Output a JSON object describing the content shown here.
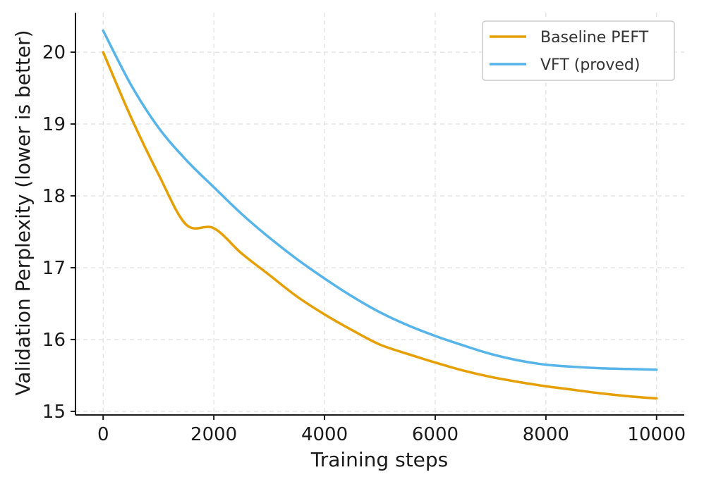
{
  "chart_data": {
    "type": "line",
    "title": "",
    "xlabel": "Training steps",
    "ylabel": "Validation Perplexity (lower is better)",
    "xlim": [
      -500,
      10500
    ],
    "ylim": [
      14.95,
      20.55
    ],
    "xticks": [
      0,
      2000,
      4000,
      6000,
      8000,
      10000
    ],
    "yticks": [
      15,
      16,
      17,
      18,
      19,
      20
    ],
    "grid": true,
    "legend_position": "top-right",
    "series": [
      {
        "name": "Baseline PEFT",
        "color": "#E69F00",
        "x": [
          0,
          500,
          1000,
          1500,
          2000,
          2500,
          3000,
          3500,
          4000,
          4500,
          5000,
          5500,
          6000,
          6500,
          7000,
          7500,
          8000,
          8500,
          9000,
          9500,
          10000
        ],
        "y": [
          20.0,
          19.1,
          18.3,
          17.6,
          17.55,
          17.2,
          16.9,
          16.6,
          16.35,
          16.13,
          15.93,
          15.8,
          15.68,
          15.57,
          15.48,
          15.41,
          15.35,
          15.3,
          15.25,
          15.21,
          15.18
        ]
      },
      {
        "name": "VFT (proved)",
        "color": "#56B4E9",
        "x": [
          0,
          500,
          1000,
          1500,
          2000,
          2500,
          3000,
          3500,
          4000,
          4500,
          5000,
          5500,
          6000,
          6500,
          7000,
          7500,
          8000,
          8500,
          9000,
          9500,
          10000
        ],
        "y": [
          20.3,
          19.55,
          18.95,
          18.5,
          18.12,
          17.75,
          17.42,
          17.12,
          16.85,
          16.6,
          16.38,
          16.2,
          16.05,
          15.92,
          15.8,
          15.71,
          15.65,
          15.62,
          15.6,
          15.59,
          15.58
        ]
      }
    ]
  }
}
